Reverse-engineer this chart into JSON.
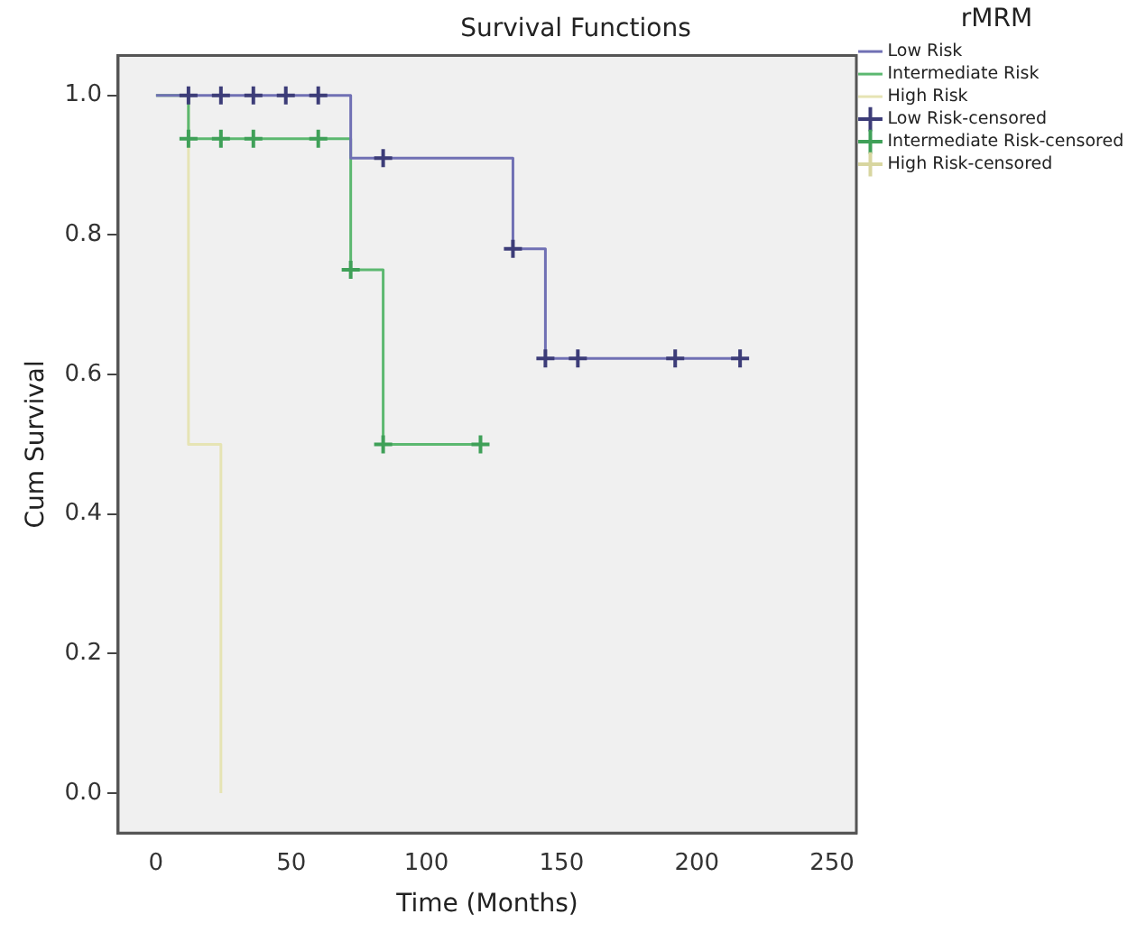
{
  "chart_data": {
    "type": "step",
    "title": "Survival Functions",
    "xlabel": "Time (Months)",
    "ylabel": "Cum Survival",
    "legend_title": "rMRM",
    "legend": "right",
    "grid": false,
    "xlim": [
      -14,
      259
    ],
    "xticks": [
      0,
      50,
      100,
      150,
      200,
      250
    ],
    "ylim": [
      -0.057,
      1.057
    ],
    "yticks": [
      {
        "value": 0,
        "label": "0.0"
      },
      {
        "value": 0.2,
        "label": "0.2"
      },
      {
        "value": 0.4,
        "label": "0.4"
      },
      {
        "value": 0.6,
        "label": "0.6"
      },
      {
        "value": 0.8,
        "label": "0.8"
      },
      {
        "value": 1,
        "label": "1.0"
      }
    ],
    "series": [
      {
        "name": "Low Risk",
        "color": "#7070b4",
        "x": [
          0,
          72,
          132,
          144,
          216
        ],
        "values": [
          1,
          0.91,
          0.78,
          0.623,
          0.623
        ]
      },
      {
        "name": "Intermediate Risk",
        "color": "#5cb870",
        "x": [
          0,
          12,
          72,
          84,
          120
        ],
        "values": [
          1,
          0.938,
          0.75,
          0.5,
          0.5
        ]
      },
      {
        "name": "High Risk",
        "color": "#e6e4b4",
        "x": [
          0,
          12,
          24
        ],
        "values": [
          1,
          0.5,
          0
        ]
      },
      {
        "name": "Low Risk-censored",
        "type": "scatter",
        "marker": "cross",
        "color": "#3c3c78",
        "x": [
          12,
          24,
          36,
          48,
          60,
          84,
          132,
          144,
          156,
          192,
          216
        ],
        "values": [
          1,
          1,
          1,
          1,
          1,
          0.91,
          0.78,
          0.623,
          0.623,
          0.623,
          0.623
        ]
      },
      {
        "name": "Intermediate Risk-censored",
        "type": "scatter",
        "marker": "cross",
        "color": "#3fa058",
        "x": [
          12,
          24,
          36,
          60,
          72,
          84,
          120
        ],
        "values": [
          0.938,
          0.938,
          0.938,
          0.938,
          0.75,
          0.5,
          0.5
        ]
      },
      {
        "name": "High Risk-censored",
        "type": "scatter",
        "marker": "cross",
        "color": "#d8d6a0"
      }
    ]
  }
}
